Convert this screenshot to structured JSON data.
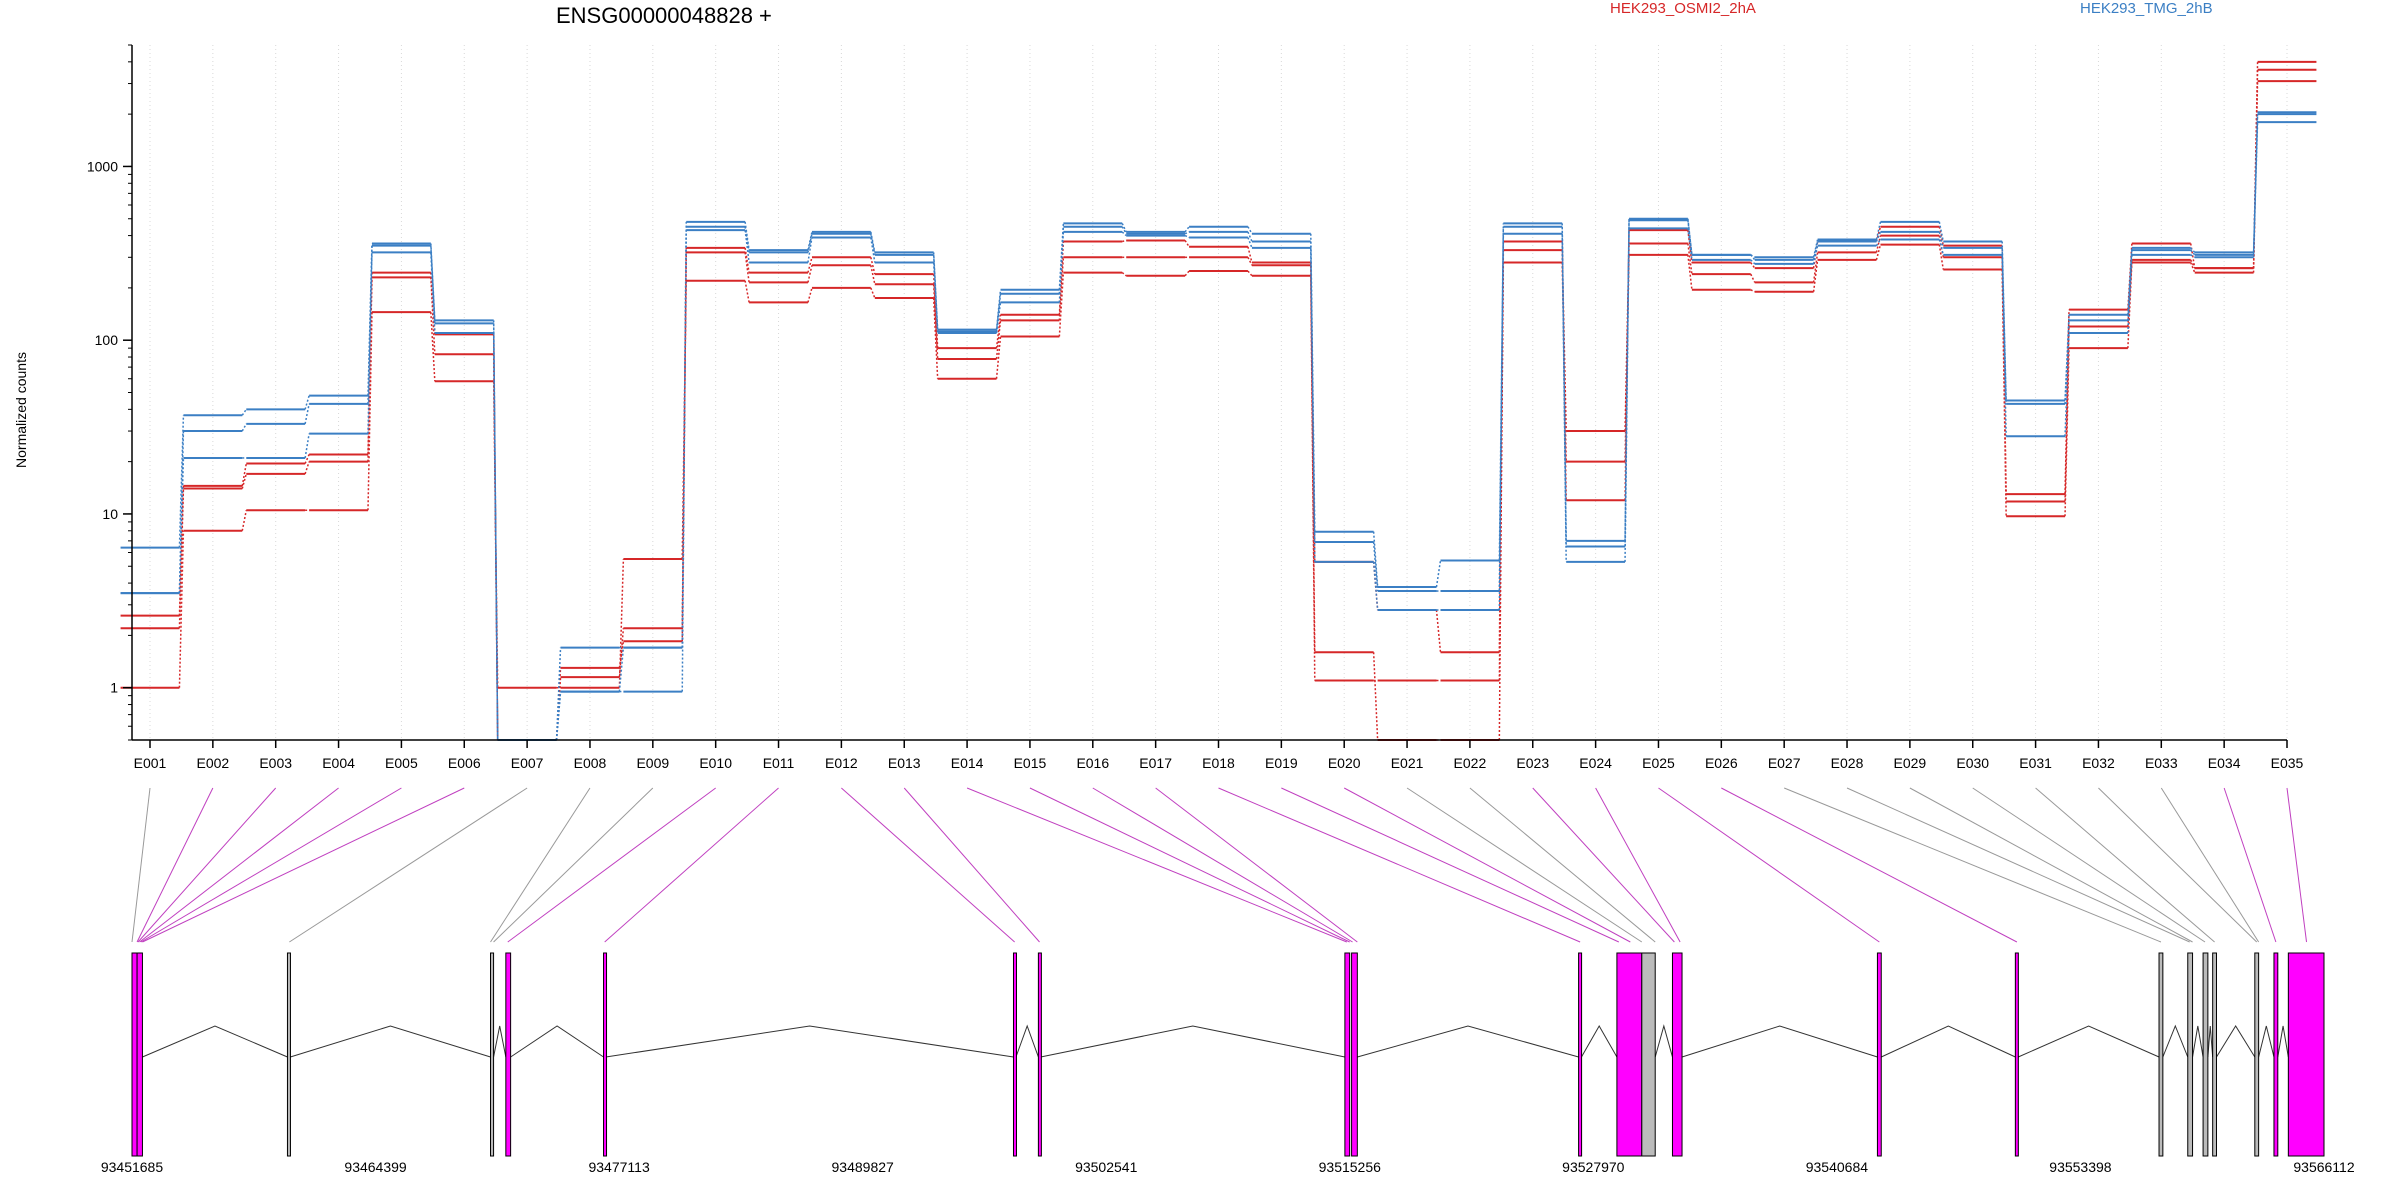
{
  "chart_data": {
    "type": "line",
    "title": "ENSG00000048828 +",
    "ylabel": "Normalized counts",
    "y_scale": "log",
    "ylim": [
      0.5,
      5000
    ],
    "y_ticks": [
      1,
      10,
      100,
      1000
    ],
    "y_tick_labels": [
      "1",
      "10",
      "100",
      "1000"
    ],
    "legend": [
      {
        "label": "HEK293_OSMI2_2hA",
        "color": "#d62728"
      },
      {
        "label": "HEK293_TMG_2hB",
        "color": "#3b7fc4"
      }
    ],
    "legend_position": "top-right",
    "grid": "vertical-dotted",
    "categories": [
      "E001",
      "E002",
      "E003",
      "E004",
      "E005",
      "E006",
      "E007",
      "E008",
      "E009",
      "E010",
      "E011",
      "E012",
      "E013",
      "E014",
      "E015",
      "E016",
      "E017",
      "E018",
      "E019",
      "E020",
      "E021",
      "E022",
      "E023",
      "E024",
      "E025",
      "E026",
      "E027",
      "E028",
      "E029",
      "E030",
      "E031",
      "E032",
      "E033",
      "E034",
      "E035"
    ],
    "series": [
      {
        "group": "HEK293_OSMI2_2hA",
        "color": "#d62728",
        "values": [
          1,
          8,
          10.5,
          10.5,
          145,
          58,
          1,
          1,
          5.5,
          220,
          165,
          200,
          175,
          60,
          105,
          245,
          235,
          250,
          235,
          1.1,
          1.1,
          1.1,
          280,
          20,
          310,
          195,
          190,
          290,
          355,
          255,
          9.7,
          90,
          280,
          245,
          3100
        ]
      },
      {
        "group": "HEK293_OSMI2_2hA",
        "color": "#d62728",
        "values": [
          2.2,
          14,
          17,
          20,
          230,
          83,
          0.5,
          1.15,
          2.2,
          320,
          215,
          270,
          210,
          78,
          130,
          300,
          300,
          300,
          270,
          1.6,
          0.5,
          0.5,
          330,
          30,
          360,
          240,
          215,
          320,
          400,
          300,
          11.8,
          120,
          290,
          260,
          3600
        ]
      },
      {
        "group": "HEK293_OSMI2_2hA",
        "color": "#d62728",
        "values": [
          2.6,
          14.5,
          19.5,
          22,
          245,
          108,
          0.5,
          1.3,
          1.85,
          340,
          245,
          300,
          240,
          90,
          140,
          370,
          375,
          345,
          280,
          5.3,
          2.8,
          1.6,
          370,
          12,
          430,
          280,
          260,
          370,
          450,
          350,
          13,
          150,
          360,
          260,
          4000
        ]
      },
      {
        "group": "HEK293_TMG_2hB",
        "color": "#3b7fc4",
        "values": [
          3.5,
          21,
          21,
          29,
          320,
          110,
          0.5,
          0.95,
          0.95,
          430,
          280,
          390,
          280,
          110,
          165,
          420,
          400,
          390,
          340,
          5.3,
          2.8,
          2.8,
          410,
          5.3,
          440,
          290,
          275,
          350,
          380,
          310,
          28,
          110,
          310,
          300,
          1800
        ]
      },
      {
        "group": "HEK293_TMG_2hB",
        "color": "#3b7fc4",
        "values": [
          3.5,
          30,
          33,
          43,
          350,
          125,
          0.5,
          0.95,
          1.7,
          450,
          320,
          410,
          310,
          112,
          185,
          450,
          410,
          420,
          370,
          6.9,
          3.6,
          3.6,
          450,
          6.5,
          490,
          310,
          290,
          370,
          420,
          340,
          43,
          130,
          330,
          310,
          2000
        ]
      },
      {
        "group": "HEK293_TMG_2hB",
        "color": "#3b7fc4",
        "values": [
          6.4,
          37,
          40,
          48,
          360,
          130,
          0.5,
          1.7,
          1.7,
          480,
          330,
          420,
          320,
          115,
          195,
          470,
          420,
          450,
          410,
          7.9,
          3.8,
          5.4,
          470,
          7,
          500,
          310,
          300,
          380,
          480,
          370,
          45,
          140,
          340,
          320,
          2050
        ]
      }
    ],
    "genomic_axis": {
      "start": 93451685,
      "end": 93566112,
      "tick_labels": [
        "93451685",
        "93464399",
        "93477113",
        "93489827",
        "93502541",
        "93515256",
        "93527970",
        "93540684",
        "93553398",
        "93566112"
      ]
    },
    "exons": [
      {
        "start": 93451685,
        "end": 93451950,
        "color": "#f0f"
      },
      {
        "start": 93451950,
        "end": 93452230,
        "color": "#f0f"
      },
      {
        "start": 93459800,
        "end": 93459950,
        "color": "#bbb"
      },
      {
        "start": 93470400,
        "end": 93470560,
        "color": "#bbb"
      },
      {
        "start": 93471200,
        "end": 93471450,
        "color": "#f0f"
      },
      {
        "start": 93476300,
        "end": 93476420,
        "color": "#f0f"
      },
      {
        "start": 93497700,
        "end": 93497830,
        "color": "#f0f"
      },
      {
        "start": 93499000,
        "end": 93499120,
        "color": "#f0f"
      },
      {
        "start": 93515000,
        "end": 93515250,
        "color": "#f0f"
      },
      {
        "start": 93515350,
        "end": 93515650,
        "color": "#f0f"
      },
      {
        "start": 93527200,
        "end": 93527350,
        "color": "#f0f"
      },
      {
        "start": 93529200,
        "end": 93530500,
        "color": "#f0f"
      },
      {
        "start": 93530500,
        "end": 93531200,
        "color": "#bbb"
      },
      {
        "start": 93532100,
        "end": 93532600,
        "color": "#f0f"
      },
      {
        "start": 93542800,
        "end": 93543000,
        "color": "#f0f"
      },
      {
        "start": 93550000,
        "end": 93550150,
        "color": "#f0f"
      },
      {
        "start": 93557500,
        "end": 93557700,
        "color": "#bbb"
      },
      {
        "start": 93559000,
        "end": 93559250,
        "color": "#bbb"
      },
      {
        "start": 93559800,
        "end": 93560050,
        "color": "#bbb"
      },
      {
        "start": 93560300,
        "end": 93560500,
        "color": "#bbb"
      },
      {
        "start": 93562500,
        "end": 93562700,
        "color": "#bbb"
      },
      {
        "start": 93563500,
        "end": 93563700,
        "color": "#f0f"
      },
      {
        "start": 93564250,
        "end": 93566112,
        "color": "#f0f"
      }
    ],
    "exon_bin_links": [
      {
        "bin": "E001",
        "pos": 93451685,
        "color": "#999"
      },
      {
        "bin": "E002",
        "pos": 93451950,
        "color": "#c040c0"
      },
      {
        "bin": "E003",
        "pos": 93452000,
        "color": "#c040c0"
      },
      {
        "bin": "E004",
        "pos": 93452080,
        "color": "#c040c0"
      },
      {
        "bin": "E005",
        "pos": 93452150,
        "color": "#c040c0"
      },
      {
        "bin": "E006",
        "pos": 93452230,
        "color": "#c040c0"
      },
      {
        "bin": "E007",
        "pos": 93459900,
        "color": "#999"
      },
      {
        "bin": "E008",
        "pos": 93470400,
        "color": "#999"
      },
      {
        "bin": "E009",
        "pos": 93470560,
        "color": "#999"
      },
      {
        "bin": "E010",
        "pos": 93471300,
        "color": "#c040c0"
      },
      {
        "bin": "E011",
        "pos": 93476360,
        "color": "#c040c0"
      },
      {
        "bin": "E012",
        "pos": 93497760,
        "color": "#c040c0"
      },
      {
        "bin": "E013",
        "pos": 93499060,
        "color": "#c040c0"
      },
      {
        "bin": "E014",
        "pos": 93515100,
        "color": "#c040c0"
      },
      {
        "bin": "E015",
        "pos": 93515250,
        "color": "#c040c0"
      },
      {
        "bin": "E016",
        "pos": 93515400,
        "color": "#c040c0"
      },
      {
        "bin": "E017",
        "pos": 93515650,
        "color": "#c040c0"
      },
      {
        "bin": "E018",
        "pos": 93527280,
        "color": "#c040c0"
      },
      {
        "bin": "E019",
        "pos": 93529300,
        "color": "#c040c0"
      },
      {
        "bin": "E020",
        "pos": 93529900,
        "color": "#c040c0"
      },
      {
        "bin": "E021",
        "pos": 93530500,
        "color": "#999"
      },
      {
        "bin": "E022",
        "pos": 93531200,
        "color": "#999"
      },
      {
        "bin": "E023",
        "pos": 93532200,
        "color": "#c040c0"
      },
      {
        "bin": "E024",
        "pos": 93532500,
        "color": "#c040c0"
      },
      {
        "bin": "E025",
        "pos": 93542900,
        "color": "#c040c0"
      },
      {
        "bin": "E026",
        "pos": 93550080,
        "color": "#c040c0"
      },
      {
        "bin": "E027",
        "pos": 93557600,
        "color": "#999"
      },
      {
        "bin": "E028",
        "pos": 93559100,
        "color": "#999"
      },
      {
        "bin": "E029",
        "pos": 93559250,
        "color": "#999"
      },
      {
        "bin": "E030",
        "pos": 93559900,
        "color": "#999"
      },
      {
        "bin": "E031",
        "pos": 93560400,
        "color": "#999"
      },
      {
        "bin": "E032",
        "pos": 93562600,
        "color": "#999"
      },
      {
        "bin": "E033",
        "pos": 93562700,
        "color": "#999"
      },
      {
        "bin": "E034",
        "pos": 93563600,
        "color": "#c040c0"
      },
      {
        "bin": "E035",
        "pos": 93565200,
        "color": "#c040c0"
      }
    ],
    "intron_peaks": [
      {
        "from": 93452230,
        "to": 93459800
      },
      {
        "from": 93459950,
        "to": 93470400
      },
      {
        "from": 93470560,
        "to": 93471200
      },
      {
        "from": 93471450,
        "to": 93476300
      },
      {
        "from": 93476420,
        "to": 93497700
      },
      {
        "from": 93497830,
        "to": 93499000
      },
      {
        "from": 93499120,
        "to": 93515000
      },
      {
        "from": 93515650,
        "to": 93527200
      },
      {
        "from": 93527350,
        "to": 93529200
      },
      {
        "from": 93531200,
        "to": 93532100
      },
      {
        "from": 93532600,
        "to": 93542800
      },
      {
        "from": 93543000,
        "to": 93550000
      },
      {
        "from": 93550150,
        "to": 93557500
      },
      {
        "from": 93557700,
        "to": 93559000
      },
      {
        "from": 93559250,
        "to": 93559800
      },
      {
        "from": 93560050,
        "to": 93560300
      },
      {
        "from": 93560500,
        "to": 93562500
      },
      {
        "from": 93562700,
        "to": 93563500
      },
      {
        "from": 93563700,
        "to": 93564250
      }
    ]
  }
}
